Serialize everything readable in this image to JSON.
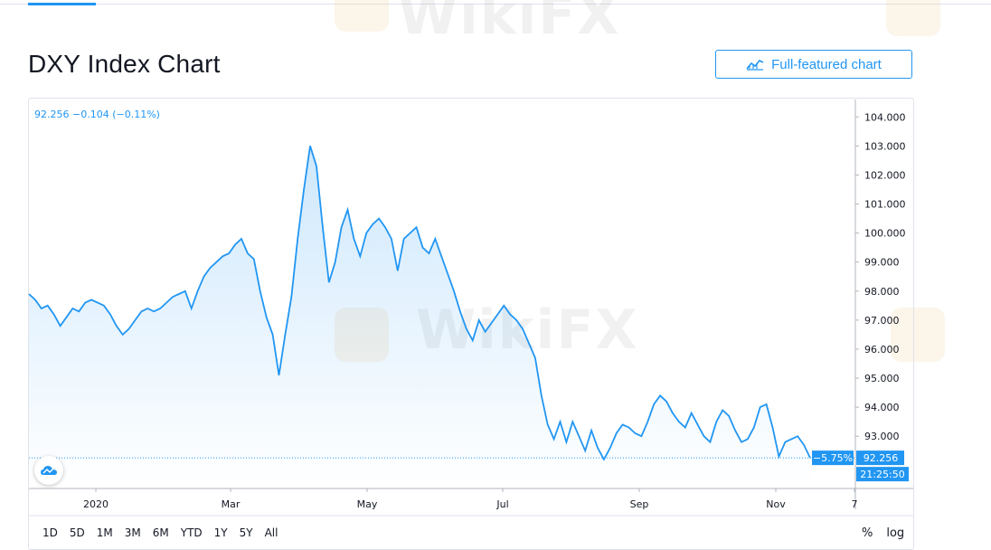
{
  "title": "DXY Index Chart",
  "full_chart_label": "Full-featured chart",
  "legend_text": "92.256 −0.104 (−0.11%)",
  "watermark": "WikiFX",
  "ranges": [
    "1D",
    "5D",
    "1M",
    "3M",
    "6M",
    "YTD",
    "1Y",
    "5Y",
    "All"
  ],
  "scale_options": [
    "%",
    "log"
  ],
  "colors": {
    "line": "#2196f3",
    "accent": "#2196f3"
  },
  "chart_data": {
    "type": "area",
    "title": "",
    "xlabel": "",
    "ylabel": "",
    "x_ticks": [
      "2020",
      "Mar",
      "May",
      "Jul",
      "Sep",
      "Nov",
      "7"
    ],
    "y_ticks": [
      "93.000",
      "94.000",
      "95.000",
      "96.000",
      "97.000",
      "98.000",
      "99.000",
      "100.000",
      "101.000",
      "102.000",
      "103.000",
      "104.000"
    ],
    "ylim": [
      91.2,
      104.6
    ],
    "last_value": "92.256",
    "change_badge": "−5.75%",
    "countdown": "21:25:50",
    "series": [
      {
        "values": [
          97.9,
          97.7,
          97.4,
          97.5,
          97.2,
          96.8,
          97.1,
          97.4,
          97.3,
          97.6,
          97.7,
          97.6,
          97.5,
          97.2,
          96.8,
          96.5,
          96.7,
          97.0,
          97.3,
          97.4,
          97.3,
          97.4,
          97.6,
          97.8,
          97.9,
          98.0,
          97.4,
          98.0,
          98.5,
          98.8,
          99.0,
          99.2,
          99.3,
          99.6,
          99.8,
          99.3,
          99.1,
          98.0,
          97.1,
          96.5,
          95.1,
          96.5,
          97.8,
          99.8,
          101.5,
          103.0,
          102.3,
          100.2,
          98.3,
          99.0,
          100.2,
          100.8,
          99.8,
          99.2,
          100.0,
          100.3,
          100.5,
          100.2,
          99.8,
          98.7,
          99.8,
          100.0,
          100.2,
          99.5,
          99.3,
          99.8,
          99.2,
          98.6,
          98.0,
          97.3,
          96.7,
          96.3,
          97.0,
          96.6,
          96.9,
          97.2,
          97.5,
          97.2,
          97.0,
          96.7,
          96.2,
          95.7,
          94.4,
          93.4,
          92.9,
          93.5,
          92.8,
          93.5,
          93.0,
          92.5,
          93.2,
          92.6,
          92.2,
          92.6,
          93.1,
          93.4,
          93.3,
          93.1,
          93.0,
          93.5,
          94.1,
          94.4,
          94.2,
          93.8,
          93.5,
          93.3,
          93.8,
          93.4,
          93.0,
          92.8,
          93.5,
          93.9,
          93.7,
          93.2,
          92.8,
          92.9,
          93.3,
          94.0,
          94.1,
          93.3,
          92.3,
          92.8,
          92.9,
          93.0,
          92.7,
          92.256
        ]
      }
    ]
  }
}
